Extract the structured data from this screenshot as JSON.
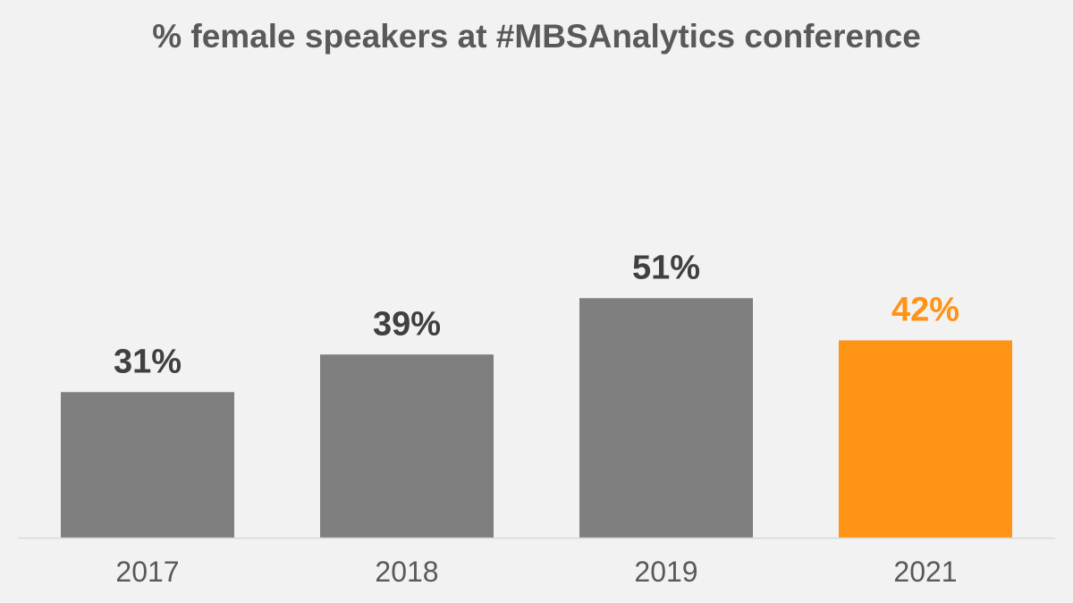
{
  "chart_data": {
    "type": "bar",
    "title": "% female speakers at #MBSAnalytics conference",
    "categories": [
      "2017",
      "2018",
      "2019",
      "2021"
    ],
    "values": [
      31,
      39,
      51,
      42
    ],
    "data_labels": [
      "31%",
      "39%",
      "51%",
      "42%"
    ],
    "unit": "%",
    "xlabel": "",
    "ylabel": "",
    "ylim": [
      0,
      60
    ],
    "grid": false,
    "legend": "none",
    "colors": {
      "bar_default": "#7f7f7f",
      "bar_highlight": "#ff9315",
      "label_default": "#404040",
      "label_highlight": "#ff9315",
      "tick_label": "#595959",
      "axis_line": "#d9d9d9",
      "background": "#f2f2f2"
    },
    "highlight_category": "2021"
  }
}
